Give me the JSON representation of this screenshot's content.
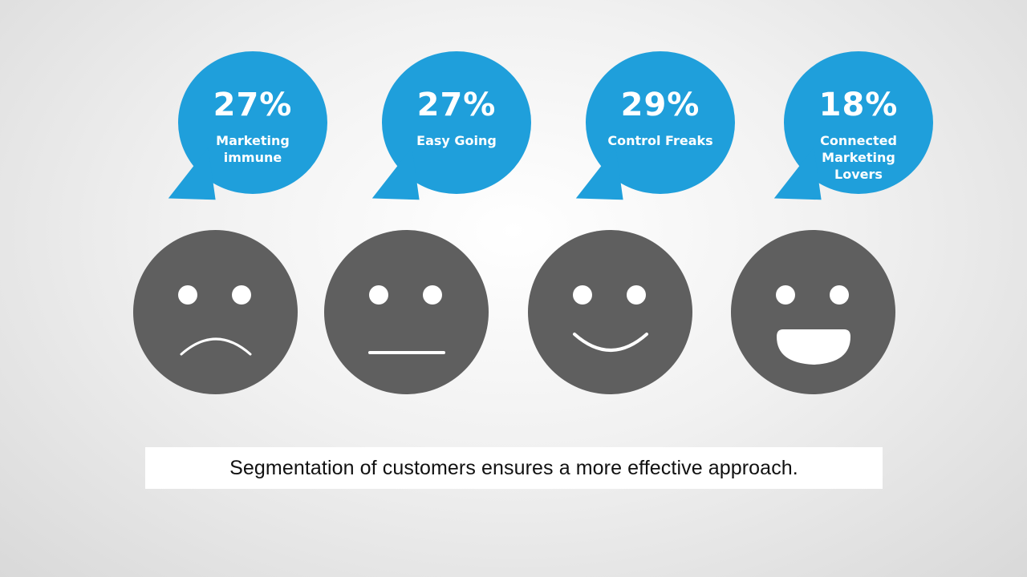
{
  "segments": [
    {
      "percent": "27%",
      "label": "Marketing\nimmune",
      "face": "sad"
    },
    {
      "percent": "27%",
      "label": "Easy Going",
      "face": "neutral"
    },
    {
      "percent": "29%",
      "label": "Control Freaks",
      "face": "smile"
    },
    {
      "percent": "18%",
      "label": "Connected\nMarketing\nLovers",
      "face": "laugh"
    }
  ],
  "caption": "Segmentation of customers ensures a more effective approach.",
  "colors": {
    "bubble": "#1f9fdb",
    "face": "#5f5f5f",
    "feature": "#ffffff",
    "background": "#e9e9e9"
  },
  "icons": {
    "sad": "sad-face-icon",
    "neutral": "neutral-face-icon",
    "smile": "smiling-face-icon",
    "laugh": "laughing-face-icon"
  }
}
